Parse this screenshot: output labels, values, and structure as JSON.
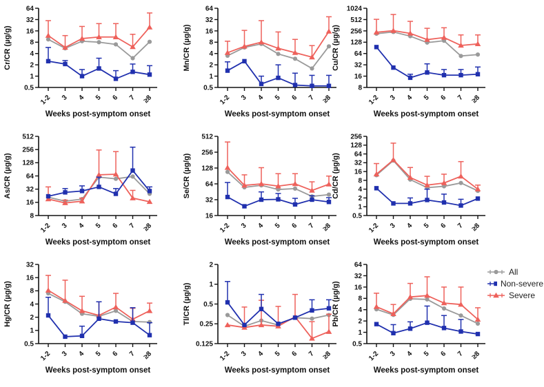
{
  "figure": {
    "x_axis_label": "Weeks post-symptom onset",
    "categories": [
      "1-2",
      "3",
      "4",
      "5",
      "6",
      "7",
      "≥8"
    ],
    "legend": [
      {
        "label": "All",
        "color": "#9a9a9a",
        "marker": "circle"
      },
      {
        "label": "Non-severe",
        "color": "#2030ae",
        "marker": "square"
      },
      {
        "label": "Severe",
        "color": "#ee615b",
        "marker": "triangle"
      }
    ],
    "colors": {
      "all": "#9a9a9a",
      "non_severe": "#2030ae",
      "severe": "#ee615b",
      "axis": "#111111"
    }
  },
  "chart_data": [
    {
      "id": "cr",
      "type": "line",
      "ylabel": "Cr/CR (µg/g)",
      "yticks": [
        0.5,
        1,
        2,
        4,
        8,
        16,
        32,
        64
      ],
      "ylim": [
        0.5,
        64
      ],
      "xlabel": "Weeks post-symptom onset",
      "categories": [
        "1-2",
        "3",
        "4",
        "5",
        "6",
        "7",
        "≥8"
      ],
      "series": [
        {
          "name": "All",
          "values": [
            9.5,
            5.5,
            8.5,
            8,
            7,
            3,
            8.2
          ],
          "err_high": [
            null,
            null,
            null,
            null,
            null,
            null,
            null
          ]
        },
        {
          "name": "Non-severe",
          "values": [
            2.5,
            2.1,
            1.0,
            1.6,
            0.85,
            1.3,
            1.1
          ],
          "err_high": [
            5.8,
            2.6,
            1.5,
            3.0,
            1.4,
            2.1,
            1.9
          ]
        },
        {
          "name": "Severe",
          "values": [
            12,
            5.8,
            10,
            11,
            11,
            6,
            20
          ],
          "err_high": [
            30,
            12,
            21,
            25,
            25,
            13,
            48
          ]
        }
      ]
    },
    {
      "id": "mn",
      "type": "line",
      "ylabel": "Mn/CR (µg/g)",
      "yticks": [
        0.5,
        1,
        2,
        4,
        8,
        16,
        32,
        64
      ],
      "ylim": [
        0.5,
        64
      ],
      "xlabel": "Weeks post-symptom onset",
      "categories": [
        "1-2",
        "3",
        "4",
        "5",
        "6",
        "7",
        "≥8"
      ],
      "series": [
        {
          "name": "All",
          "values": [
            3.5,
            5.8,
            7.2,
            3.9,
            2.9,
            1.6,
            6.2
          ],
          "err_high": [
            null,
            null,
            null,
            null,
            null,
            null,
            null
          ]
        },
        {
          "name": "Non-severe",
          "values": [
            1.4,
            2.5,
            0.62,
            0.9,
            0.58,
            0.55,
            0.55
          ],
          "err_high": [
            2.4,
            null,
            1.0,
            2.0,
            1.2,
            1.05,
            1.05
          ]
        },
        {
          "name": "Severe",
          "values": [
            4.2,
            6.2,
            8,
            5.5,
            4.2,
            3.2,
            15.5
          ],
          "err_high": [
            8.5,
            16.5,
            30,
            15,
            9.5,
            6.5,
            38
          ]
        }
      ]
    },
    {
      "id": "cu",
      "type": "line",
      "ylabel": "Cu/CR (µg/g)",
      "yticks": [
        8,
        16,
        32,
        64,
        128,
        256,
        512,
        1024
      ],
      "ylim": [
        8,
        1024
      ],
      "xlabel": "Weeks post-symptom onset",
      "categories": [
        "1-2",
        "3",
        "4",
        "5",
        "6",
        "7",
        "≥8"
      ],
      "series": [
        {
          "name": "All",
          "values": [
            215,
            240,
            185,
            125,
            140,
            55,
            60
          ],
          "err_high": [
            null,
            null,
            null,
            null,
            null,
            null,
            null
          ]
        },
        {
          "name": "Non-severe",
          "values": [
            95,
            27,
            14.5,
            20,
            17,
            17,
            18
          ],
          "err_high": [
            null,
            null,
            18,
            34,
            24,
            24,
            28
          ]
        },
        {
          "name": "Severe",
          "values": [
            235,
            260,
            220,
            150,
            170,
            105,
            115
          ],
          "err_high": [
            520,
            700,
            460,
            300,
            310,
            200,
            200
          ]
        }
      ]
    },
    {
      "id": "as",
      "type": "line",
      "ylabel": "As/CR (µg/g)",
      "yticks": [
        8,
        16,
        32,
        64,
        128,
        256,
        512
      ],
      "ylim": [
        8,
        512
      ],
      "xlabel": "Weeks post-symptom onset",
      "categories": [
        "1-2",
        "3",
        "4",
        "5",
        "6",
        "7",
        "≥8"
      ],
      "series": [
        {
          "name": "All",
          "values": [
            21,
            17,
            19,
            60,
            55,
            62,
            25
          ],
          "err_high": [
            null,
            null,
            null,
            null,
            null,
            null,
            null
          ]
        },
        {
          "name": "Non-severe",
          "values": [
            22,
            27,
            29,
            36,
            25,
            85,
            29
          ],
          "err_high": [
            null,
            33,
            38,
            60,
            33,
            290,
            36
          ]
        },
        {
          "name": "Severe",
          "values": [
            19,
            15.5,
            17,
            68,
            70,
            20,
            16.5
          ],
          "err_high": [
            36,
            18,
            20,
            250,
            230,
            30,
            null
          ]
        }
      ]
    },
    {
      "id": "se",
      "type": "line",
      "ylabel": "Se/CR (µg/g)",
      "yticks": [
        16,
        32,
        64,
        128,
        256,
        512
      ],
      "ylim": [
        16,
        512
      ],
      "xlabel": "Weeks post-symptom onset",
      "categories": [
        "1-2",
        "3",
        "4",
        "5",
        "6",
        "7",
        "≥8"
      ],
      "series": [
        {
          "name": "All",
          "values": [
            108,
            55,
            60,
            50,
            52,
            37,
            40
          ],
          "err_high": [
            null,
            null,
            null,
            null,
            null,
            null,
            null
          ]
        },
        {
          "name": "Non-severe",
          "values": [
            36,
            24,
            32,
            32.5,
            26,
            32,
            29
          ],
          "err_high": [
            68,
            null,
            45,
            42,
            34,
            38,
            35
          ]
        },
        {
          "name": "Severe",
          "values": [
            130,
            60,
            64,
            58,
            64,
            48,
            63
          ],
          "err_high": [
            400,
            95,
            130,
            100,
            100,
            70,
            90
          ]
        }
      ]
    },
    {
      "id": "cd",
      "type": "line",
      "ylabel": "Cd/CR (µg/g)",
      "yticks": [
        0.5,
        1,
        2,
        4,
        8,
        16,
        32,
        64,
        128,
        256
      ],
      "ylim": [
        0.5,
        256
      ],
      "xlabel": "Weeks post-symptom onset",
      "categories": [
        "1-2",
        "3",
        "4",
        "5",
        "6",
        "7",
        "≥8"
      ],
      "series": [
        {
          "name": "All",
          "values": [
            12,
            38,
            8.5,
            4.5,
            5,
            6.5,
            3.5
          ],
          "err_high": [
            null,
            null,
            null,
            null,
            null,
            null,
            null
          ]
        },
        {
          "name": "Non-severe",
          "values": [
            4.3,
            1.3,
            1.3,
            1.7,
            1.4,
            1.1,
            1.9
          ],
          "err_high": [
            null,
            null,
            2.0,
            4.0,
            2.7,
            1.8,
            null
          ]
        },
        {
          "name": "Severe",
          "values": [
            13,
            40,
            10,
            5.5,
            6.5,
            11,
            4
          ],
          "err_high": [
            30,
            150,
            22,
            11,
            13,
            35,
            5.5
          ]
        }
      ]
    },
    {
      "id": "hg",
      "type": "line",
      "ylabel": "Hg/CR (µg/g)",
      "yticks": [
        0.5,
        1,
        2,
        4,
        8,
        16,
        32
      ],
      "ylim": [
        0.5,
        32
      ],
      "xlabel": "Weeks post-symptom onset",
      "categories": [
        "1-2",
        "3",
        "4",
        "5",
        "6",
        "7",
        "≥8"
      ],
      "series": [
        {
          "name": "All",
          "values": [
            7,
            4.5,
            2.4,
            2.1,
            2.8,
            1.6,
            1.55
          ],
          "err_high": [
            null,
            null,
            null,
            null,
            null,
            null,
            null
          ]
        },
        {
          "name": "Non-severe",
          "values": [
            2.2,
            0.72,
            0.75,
            1.85,
            1.6,
            1.5,
            0.78
          ],
          "err_high": [
            5.7,
            null,
            1.25,
            4.5,
            null,
            3.3,
            1.5
          ]
        },
        {
          "name": "Severe",
          "values": [
            8.2,
            4.8,
            2.8,
            2.2,
            3.4,
            1.8,
            2.8
          ],
          "err_high": [
            18,
            14,
            6,
            4.5,
            7,
            3.2,
            4.2
          ]
        }
      ]
    },
    {
      "id": "tl",
      "type": "line",
      "ylabel": "Tl/CR (µg/g)",
      "yticks": [
        0.125,
        0.25,
        0.5,
        1,
        2
      ],
      "ylim": [
        0.125,
        2
      ],
      "xlabel": "Weeks post-symptom onset",
      "categories": [
        "1-2",
        "3",
        "4",
        "5",
        "6",
        "7",
        "≥8"
      ],
      "series": [
        {
          "name": "All",
          "values": [
            0.34,
            0.23,
            0.28,
            0.24,
            0.31,
            0.3,
            0.34
          ],
          "err_high": [
            null,
            null,
            null,
            null,
            null,
            null,
            null
          ]
        },
        {
          "name": "Non-severe",
          "values": [
            0.53,
            0.24,
            0.42,
            0.25,
            0.31,
            0.4,
            0.43
          ],
          "err_high": [
            1.1,
            null,
            0.7,
            null,
            null,
            0.58,
            0.58
          ]
        },
        {
          "name": "Severe",
          "values": [
            0.24,
            0.22,
            0.24,
            0.23,
            0.32,
            0.15,
            0.19
          ],
          "err_high": [
            null,
            0.45,
            0.57,
            0.46,
            0.7,
            0.27,
            0.35
          ]
        }
      ]
    },
    {
      "id": "pb",
      "type": "line",
      "ylabel": "Pb/CR (µg/g)",
      "yticks": [
        0.5,
        1,
        2,
        4,
        8,
        16,
        32,
        64
      ],
      "ylim": [
        0.5,
        64
      ],
      "xlabel": "Weeks post-symptom onset",
      "categories": [
        "1-2",
        "3",
        "4",
        "5",
        "6",
        "7",
        "≥8"
      ],
      "series": [
        {
          "name": "All",
          "values": [
            4.1,
            2.9,
            7.8,
            7.5,
            4.3,
            2.8,
            1.7
          ],
          "err_high": [
            null,
            null,
            null,
            null,
            null,
            null,
            null
          ]
        },
        {
          "name": "Non-severe",
          "values": [
            1.65,
            0.95,
            1.25,
            1.8,
            1.3,
            1.05,
            0.9
          ],
          "err_high": [
            null,
            1.6,
            1.9,
            5.0,
            2.8,
            2.2,
            null
          ]
        },
        {
          "name": "Severe",
          "values": [
            4.8,
            3.1,
            8.7,
            9.5,
            6,
            5.5,
            2.2
          ],
          "err_high": [
            11,
            5.5,
            20,
            30,
            16,
            16,
            4.5
          ]
        }
      ]
    }
  ]
}
